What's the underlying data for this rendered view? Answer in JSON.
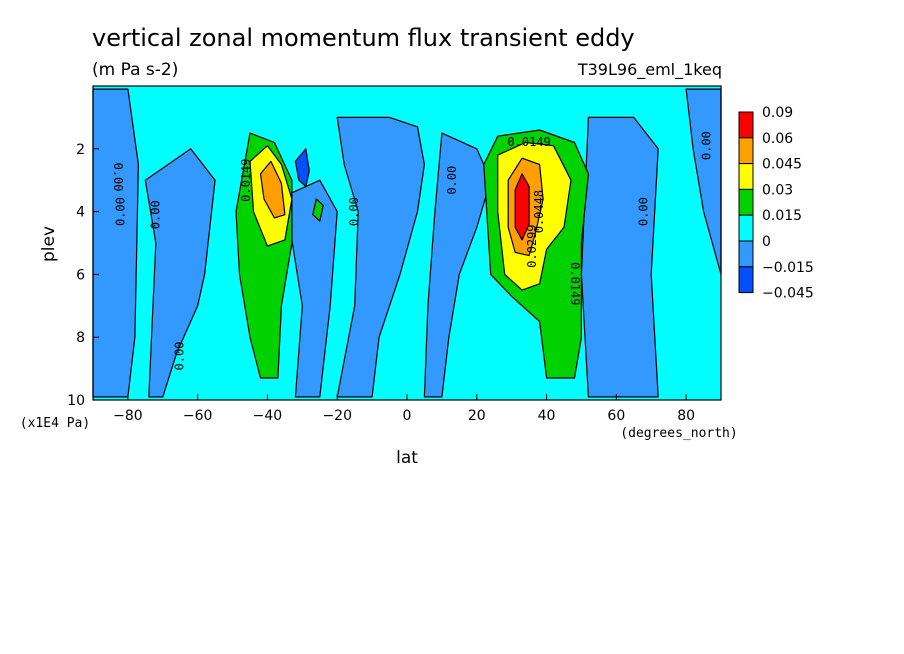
{
  "chart_data": {
    "type": "heatmap",
    "title": "vertical zonal momentum flux transient eddy",
    "units": "(m Pa s-2)",
    "run_label": "T39L96_eml_1keq",
    "xlabel": "lat",
    "x_units": "(degrees_north)",
    "ylabel": "plev",
    "y_units": "(x1E4 Pa)",
    "xlim": [
      -90,
      90
    ],
    "ylim": [
      10,
      0
    ],
    "x_ticks": [
      {
        "value": -80,
        "label": "−80"
      },
      {
        "value": -60,
        "label": "−60"
      },
      {
        "value": -40,
        "label": "−40"
      },
      {
        "value": -20,
        "label": "−20"
      },
      {
        "value": 0,
        "label": "0"
      },
      {
        "value": 20,
        "label": "20"
      },
      {
        "value": 40,
        "label": "40"
      },
      {
        "value": 60,
        "label": "60"
      },
      {
        "value": 80,
        "label": "80"
      }
    ],
    "y_ticks": [
      {
        "value": 2,
        "label": "2"
      },
      {
        "value": 4,
        "label": "4"
      },
      {
        "value": 6,
        "label": "6"
      },
      {
        "value": 8,
        "label": "8"
      },
      {
        "value": 10,
        "label": "10"
      }
    ],
    "colorbar": [
      {
        "label": "0.09",
        "color": "#ff0000"
      },
      {
        "label": "0.06",
        "color": "#ff9f00"
      },
      {
        "label": "0.045",
        "color": "#ffff00"
      },
      {
        "label": "0.03",
        "color": "#00d200"
      },
      {
        "label": "0.015",
        "color": "#00ffff"
      },
      {
        "label": "0",
        "color": "#3399ff"
      },
      {
        "label": "−0.015",
        "color": "#0050ff"
      },
      {
        "label": "−0.045",
        "color": null
      }
    ],
    "background_color": "#00ffff",
    "contour_labels": [
      {
        "text": "0.00",
        "lat": -83,
        "plev": 2.9,
        "rotate": 90
      },
      {
        "text": "0.00",
        "lat": -82,
        "plev": 4.0,
        "rotate": -90
      },
      {
        "text": "0.00",
        "lat": -72,
        "plev": 4.1,
        "rotate": -90
      },
      {
        "text": "0.00",
        "lat": -65,
        "plev": 8.6,
        "rotate": -90
      },
      {
        "text": "0.0149",
        "lat": -46,
        "plev": 3.0,
        "rotate": -90
      },
      {
        "text": "0.00",
        "lat": -15,
        "plev": 4.0,
        "rotate": -90
      },
      {
        "text": "0.00",
        "lat": 13,
        "plev": 3.0,
        "rotate": -90
      },
      {
        "text": "0.0149",
        "lat": 35,
        "plev": 1.8,
        "rotate": 0
      },
      {
        "text": "0.0448",
        "lat": 38,
        "plev": 4.0,
        "rotate": -90
      },
      {
        "text": "0.0299",
        "lat": 36,
        "plev": 5.1,
        "rotate": -90
      },
      {
        "text": "0.0149",
        "lat": 48,
        "plev": 6.3,
        "rotate": 90
      },
      {
        "text": "0.00",
        "lat": 68,
        "plev": 4.0,
        "rotate": -90
      },
      {
        "text": "0.00",
        "lat": 86,
        "plev": 1.9,
        "rotate": -90
      }
    ],
    "regions": [
      {
        "level": "-0.015",
        "color": "#3399ff",
        "points": [
          [
            -90,
            0.1
          ],
          [
            -80,
            0.1
          ],
          [
            -77,
            2.5
          ],
          [
            -78,
            8
          ],
          [
            -80,
            9.9
          ],
          [
            -90,
            9.9
          ]
        ]
      },
      {
        "level": "-0.015",
        "color": "#3399ff",
        "points": [
          [
            -75,
            3
          ],
          [
            -62,
            2
          ],
          [
            -55,
            3
          ],
          [
            -58,
            6
          ],
          [
            -60,
            7
          ],
          [
            -66,
            8.5
          ],
          [
            -70,
            9.9
          ],
          [
            -74,
            9.9
          ],
          [
            -72,
            5
          ]
        ]
      },
      {
        "level": "-0.015",
        "color": "#3399ff",
        "points": [
          [
            -35,
            3.5
          ],
          [
            -25,
            3
          ],
          [
            -20,
            4
          ],
          [
            -22,
            7
          ],
          [
            -25,
            9.9
          ],
          [
            -32,
            9.9
          ],
          [
            -30,
            7
          ]
        ]
      },
      {
        "level": "-0.015",
        "color": "#3399ff",
        "points": [
          [
            -20,
            1
          ],
          [
            -5,
            1
          ],
          [
            3,
            1.3
          ],
          [
            5,
            2.5
          ],
          [
            3,
            4
          ],
          [
            -2,
            6
          ],
          [
            -8,
            8
          ],
          [
            -10,
            9.9
          ],
          [
            -20,
            9.9
          ],
          [
            -15,
            7
          ],
          [
            -14,
            4
          ],
          [
            -18,
            2.5
          ]
        ]
      },
      {
        "level": "-0.015",
        "color": "#3399ff",
        "points": [
          [
            10,
            1.5
          ],
          [
            20,
            2
          ],
          [
            24,
            3
          ],
          [
            20,
            4.5
          ],
          [
            15,
            6
          ],
          [
            12,
            8
          ],
          [
            10,
            9.9
          ],
          [
            5,
            9.9
          ],
          [
            6,
            7
          ],
          [
            8,
            4
          ]
        ]
      },
      {
        "level": "-0.015",
        "color": "#3399ff",
        "points": [
          [
            52,
            1
          ],
          [
            65,
            1
          ],
          [
            72,
            2
          ],
          [
            70,
            6
          ],
          [
            72,
            9.9
          ],
          [
            52,
            9.9
          ],
          [
            50,
            6
          ]
        ]
      },
      {
        "level": "-0.015",
        "color": "#3399ff",
        "points": [
          [
            80,
            0.1
          ],
          [
            90,
            0.1
          ],
          [
            90,
            6
          ],
          [
            85,
            4
          ],
          [
            82,
            2
          ]
        ]
      },
      {
        "level": "0.015",
        "color": "#00d200",
        "points": [
          [
            -49,
            4
          ],
          [
            -45,
            1.5
          ],
          [
            -38,
            1.8
          ],
          [
            -33,
            3
          ],
          [
            -33,
            5
          ],
          [
            -36,
            7
          ],
          [
            -37,
            9.3
          ],
          [
            -42,
            9.3
          ],
          [
            -45,
            8
          ],
          [
            -48,
            6
          ]
        ]
      },
      {
        "level": "0.015",
        "color": "#00d200",
        "points": [
          [
            -26,
            3.6
          ],
          [
            -24,
            3.8
          ],
          [
            -25,
            4.3
          ],
          [
            -27,
            4.1
          ]
        ]
      },
      {
        "level": "0.015",
        "color": "#00d200",
        "points": [
          [
            22,
            2.5
          ],
          [
            26,
            1.6
          ],
          [
            38,
            1.4
          ],
          [
            48,
            1.8
          ],
          [
            52,
            2.8
          ],
          [
            50,
            5
          ],
          [
            50,
            8
          ],
          [
            48,
            9.3
          ],
          [
            40,
            9.3
          ],
          [
            38,
            7.5
          ],
          [
            30,
            6.7
          ],
          [
            24,
            6
          ]
        ]
      },
      {
        "level": "0.03",
        "color": "#ffff00",
        "points": [
          [
            -45,
            2.4
          ],
          [
            -40,
            1.9
          ],
          [
            -36,
            2.5
          ],
          [
            -33,
            3.6
          ],
          [
            -35,
            4.9
          ],
          [
            -40,
            5.1
          ],
          [
            -44,
            4
          ]
        ]
      },
      {
        "level": "0.03",
        "color": "#ffff00",
        "points": [
          [
            26,
            2.2
          ],
          [
            34,
            1.8
          ],
          [
            42,
            1.9
          ],
          [
            47,
            3
          ],
          [
            45,
            4.5
          ],
          [
            40,
            5.2
          ],
          [
            38,
            6.3
          ],
          [
            33,
            6.5
          ],
          [
            28,
            6
          ],
          [
            26,
            4
          ]
        ]
      },
      {
        "level": "0.045",
        "color": "#ff9f00",
        "points": [
          [
            -42,
            2.8
          ],
          [
            -39,
            2.4
          ],
          [
            -36,
            3.1
          ],
          [
            -35,
            4.1
          ],
          [
            -38,
            4.2
          ],
          [
            -41,
            3.6
          ]
        ]
      },
      {
        "level": "0.045",
        "color": "#ff9f00",
        "points": [
          [
            29,
            3
          ],
          [
            33,
            2.3
          ],
          [
            38,
            2.5
          ],
          [
            39,
            3.6
          ],
          [
            37,
            4.6
          ],
          [
            35,
            5.4
          ],
          [
            31,
            5.3
          ],
          [
            29,
            4.5
          ]
        ]
      },
      {
        "level": "0.06",
        "color": "#ff0000",
        "points": [
          [
            31,
            3.3
          ],
          [
            33,
            2.8
          ],
          [
            35,
            3.2
          ],
          [
            35,
            4.4
          ],
          [
            33,
            4.9
          ],
          [
            31,
            4.5
          ]
        ]
      },
      {
        "level": "-0.045",
        "color": "#0050ff",
        "points": [
          [
            -32,
            2.4
          ],
          [
            -29,
            2
          ],
          [
            -28,
            2.7
          ],
          [
            -29,
            3.2
          ],
          [
            -31,
            3
          ]
        ]
      }
    ]
  }
}
